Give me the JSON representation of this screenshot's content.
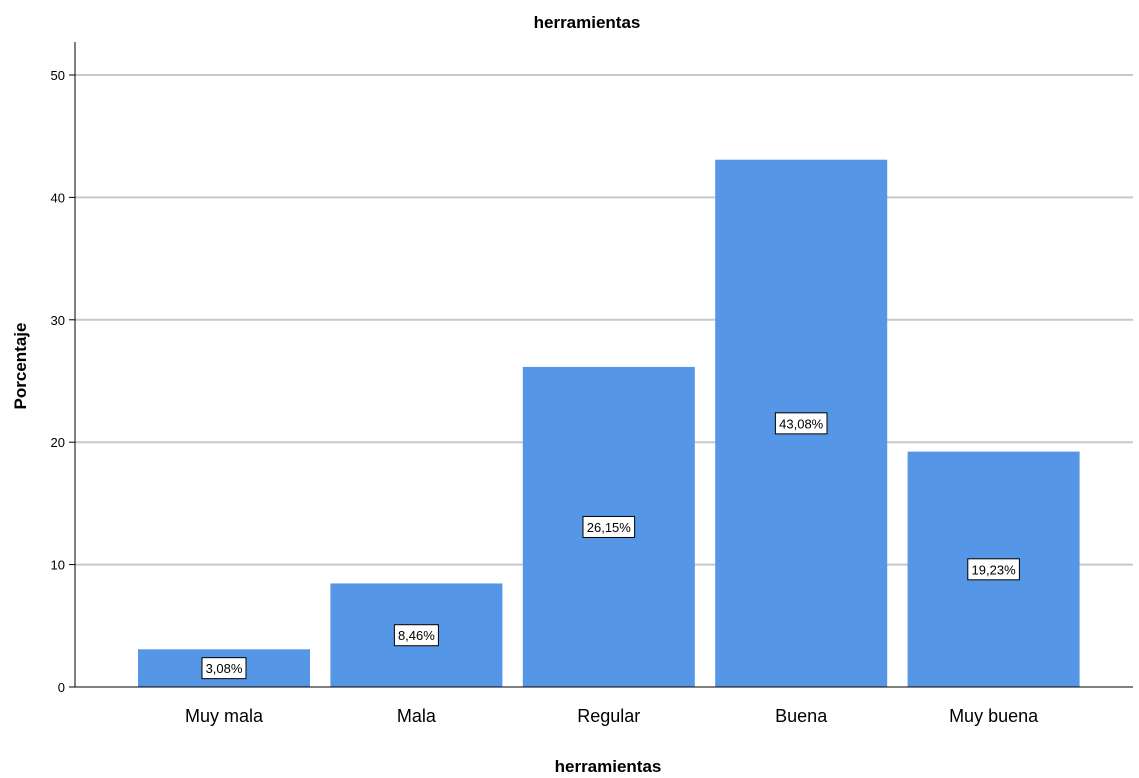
{
  "chart_data": {
    "type": "bar",
    "title": "herramientas",
    "xlabel": "herramientas",
    "ylabel": "Porcentaje",
    "categories": [
      "Muy mala",
      "Mala",
      "Regular",
      "Buena",
      "Muy buena"
    ],
    "values": [
      3.08,
      8.46,
      26.15,
      43.08,
      19.23
    ],
    "data_labels": [
      "3,08%",
      "8,46%",
      "26,15%",
      "43,08%",
      "19,23%"
    ],
    "ylim": [
      0,
      50
    ],
    "yticks": [
      0,
      10,
      20,
      30,
      40,
      50
    ],
    "ytick_labels": [
      "0",
      "10",
      "20",
      "30",
      "40",
      "50"
    ],
    "grid": true,
    "bar_color": "#5596E6",
    "grid_color": "#C8C8C8",
    "axis_color": "#000000"
  }
}
